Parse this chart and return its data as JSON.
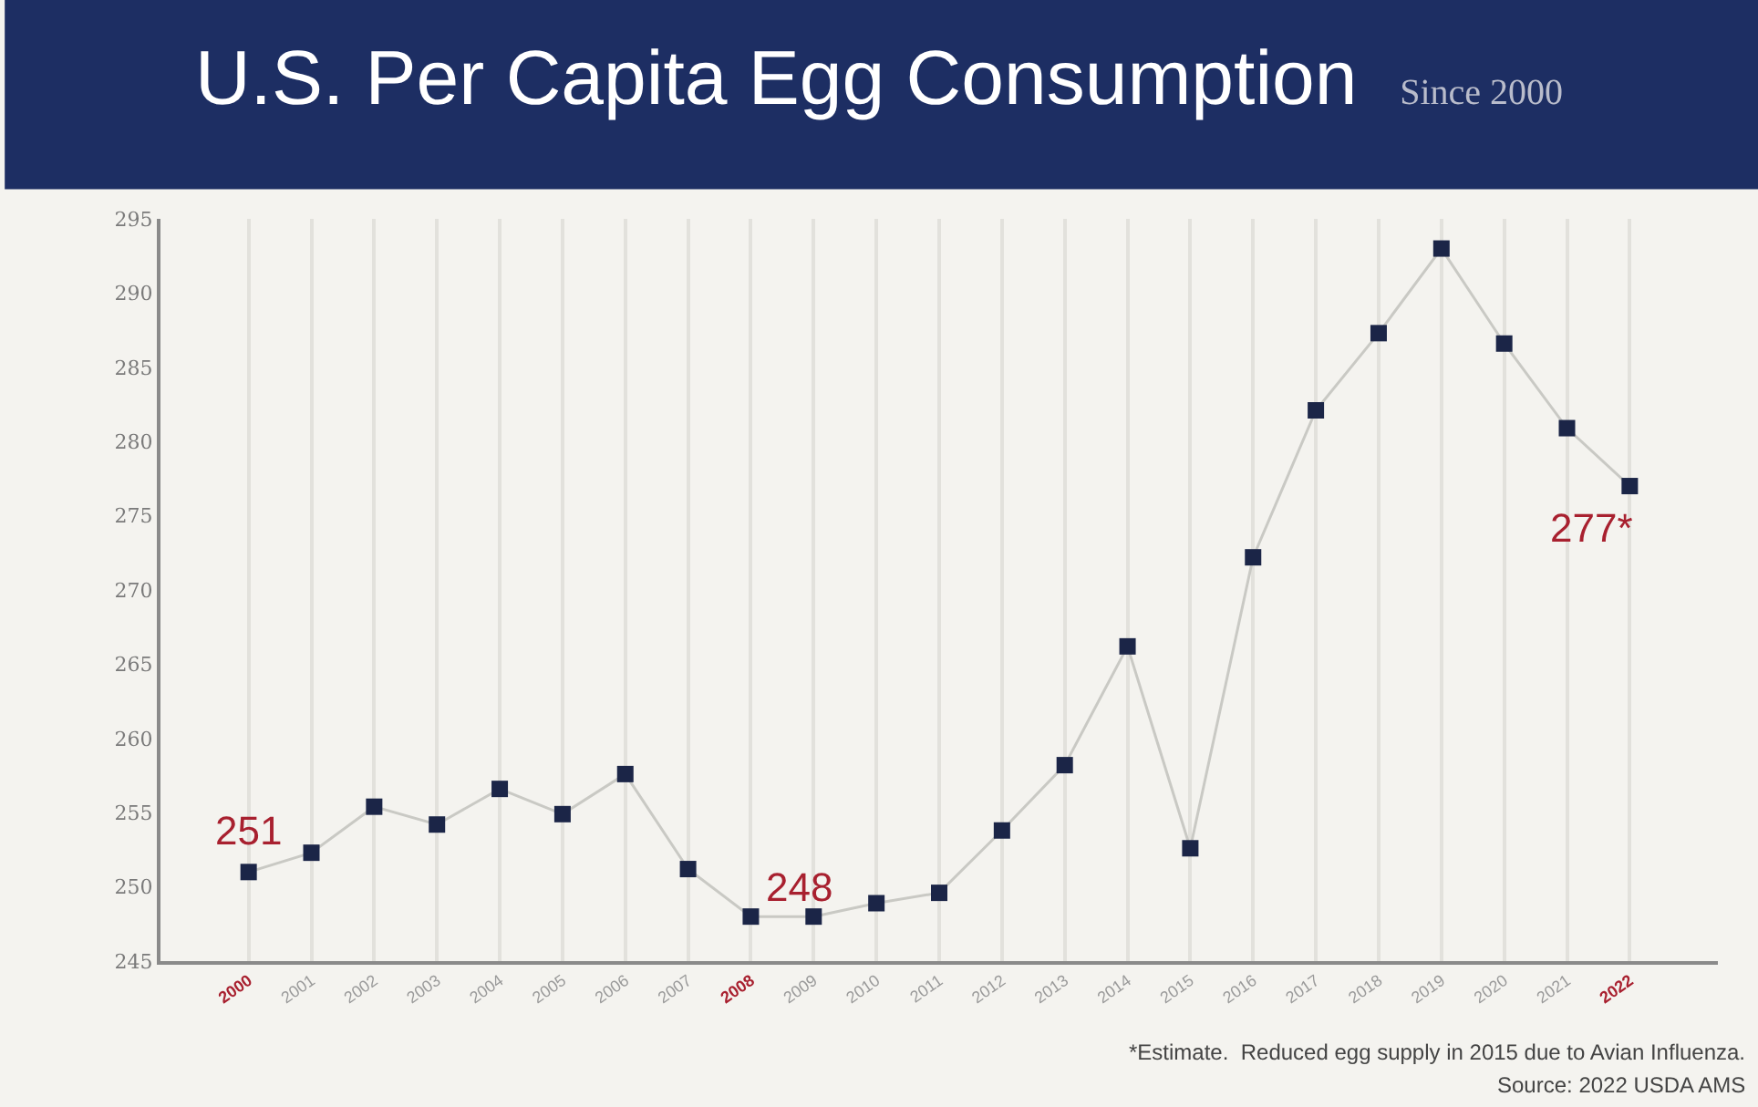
{
  "chart_data": {
    "type": "line",
    "title": "U.S. Per Capita Egg Consumption",
    "subtitle": "Since 2000",
    "categories": [
      "2000",
      "2001",
      "2002",
      "2003",
      "2004",
      "2005",
      "2006",
      "2007",
      "2008",
      "2009",
      "2010",
      "2011",
      "2012",
      "2013",
      "2014",
      "2015",
      "2016",
      "2017",
      "2018",
      "2019",
      "2020",
      "2021",
      "2022"
    ],
    "series": [
      {
        "color": "#1b2547",
        "values": [
          251,
          252.3,
          255.4,
          254.2,
          256.6,
          254.9,
          257.6,
          251.2,
          248,
          248,
          248.9,
          249.6,
          253.8,
          258.2,
          266.2,
          252.6,
          272.2,
          282.1,
          287.3,
          293,
          286.6,
          280.9,
          277
        ],
        "value_labels": [
          "251",
          null,
          null,
          null,
          null,
          null,
          null,
          null,
          "248",
          null,
          null,
          null,
          null,
          null,
          null,
          null,
          null,
          null,
          null,
          null,
          null,
          null,
          "277*"
        ]
      }
    ],
    "ylim": [
      245,
      295
    ],
    "yticks": [
      245,
      250,
      255,
      260,
      265,
      270,
      275,
      280,
      285,
      290,
      295
    ],
    "grid": "x",
    "marker": "square",
    "line_style": "solid",
    "annotations": [
      "*Estimate.  Reduced egg supply in 2015 due to Avian Influenza.",
      "Source: 2022 USDA AMS"
    ]
  }
}
